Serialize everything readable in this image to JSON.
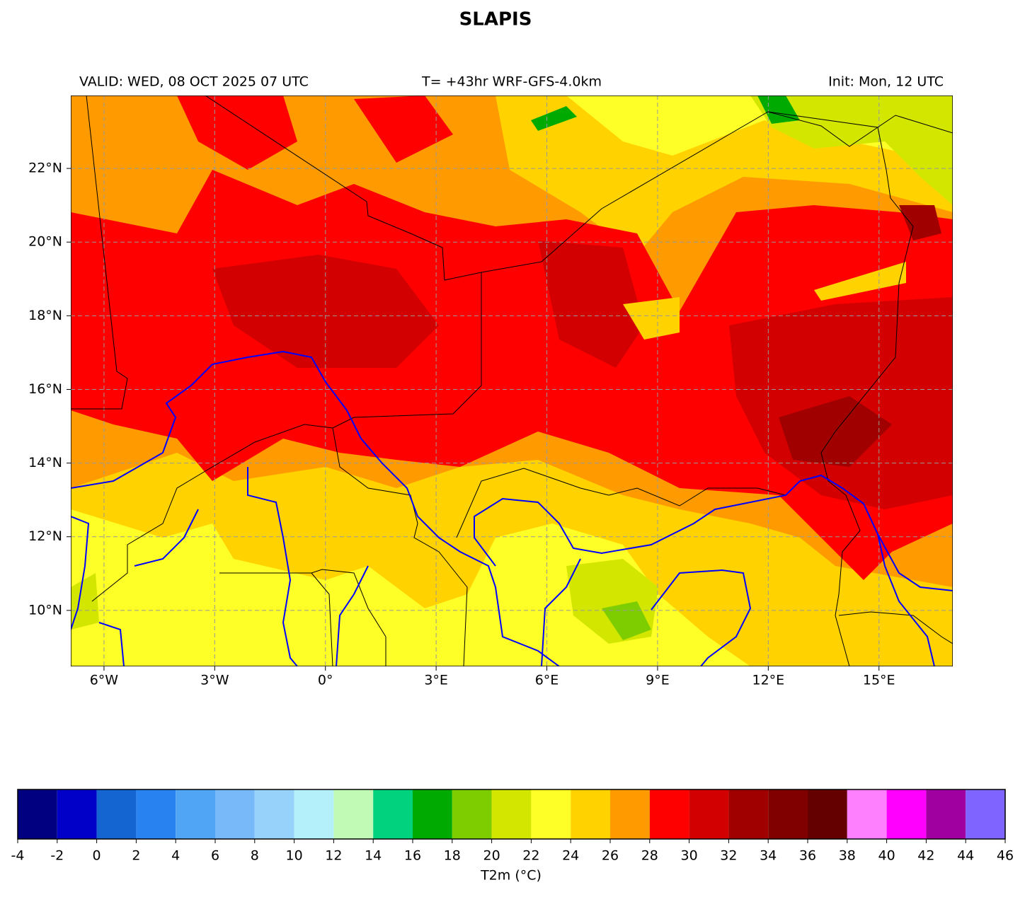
{
  "title": "SLAPIS",
  "valid": "VALID: WED, 08 OCT 2025 07 UTC",
  "run": "T= +43hr WRF-GFS-4.0km",
  "init": "Init: Mon, 12 UTC",
  "map": {
    "xlim": [
      -6.9,
      17.0
    ],
    "ylim": [
      8.48,
      23.98
    ],
    "grid": true,
    "xticks": [
      {
        "value": -6,
        "label": "6°W"
      },
      {
        "value": -3,
        "label": "3°W"
      },
      {
        "value": 0,
        "label": "0°"
      },
      {
        "value": 3,
        "label": "3°E"
      },
      {
        "value": 6,
        "label": "6°E"
      },
      {
        "value": 9,
        "label": "9°E"
      },
      {
        "value": 12,
        "label": "12°E"
      },
      {
        "value": 15,
        "label": "15°E"
      }
    ],
    "yticks": [
      {
        "value": 10,
        "label": "10°N"
      },
      {
        "value": 12,
        "label": "12°N"
      },
      {
        "value": 14,
        "label": "14°N"
      },
      {
        "value": 16,
        "label": "16°N"
      },
      {
        "value": 18,
        "label": "18°N"
      },
      {
        "value": 20,
        "label": "20°N"
      },
      {
        "value": 22,
        "label": "22°N"
      }
    ]
  },
  "colorbar": {
    "label": "T2m (°C)",
    "ticks": [
      -4,
      -2,
      0,
      2,
      4,
      6,
      8,
      10,
      12,
      14,
      16,
      18,
      20,
      22,
      24,
      26,
      28,
      30,
      32,
      34,
      36,
      38,
      40,
      42,
      44,
      46
    ],
    "colors": [
      "#000080",
      "#0000c8",
      "#1464d2",
      "#2882f0",
      "#50a5f5",
      "#78b9fa",
      "#96d2fa",
      "#b4f0fa",
      "#c0fab4",
      "#00d27d",
      "#00aa00",
      "#7dcd00",
      "#d2e600",
      "#ffff28",
      "#ffd200",
      "#ff9b00",
      "#ff0000",
      "#d20000",
      "#a00000",
      "#800000",
      "#640000",
      "#ff80ff",
      "#ff00ff",
      "#a000a0",
      "#8064ff"
    ]
  }
}
